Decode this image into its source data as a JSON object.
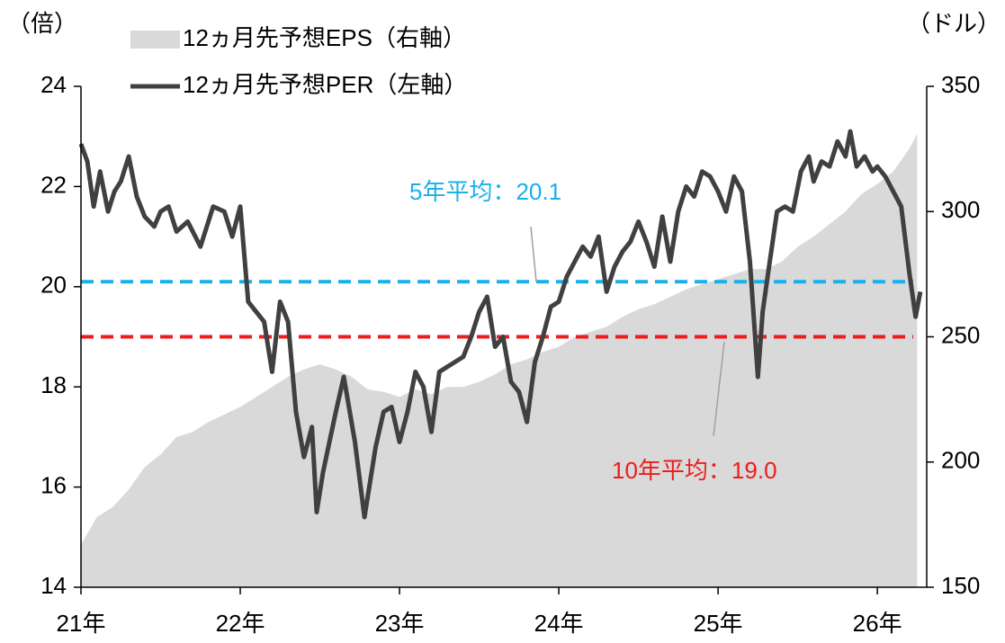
{
  "chart_data": {
    "type": "area-line",
    "y_unit": "（倍）",
    "y2_unit": "（ドル）",
    "xlim": [
      2021,
      2026.31
    ],
    "xticks": [
      {
        "value": 2021,
        "label": "21年"
      },
      {
        "value": 2022,
        "label": "22年"
      },
      {
        "value": 2023,
        "label": "23年"
      },
      {
        "value": 2024,
        "label": "24年"
      },
      {
        "value": 2025,
        "label": "25年"
      },
      {
        "value": 2026,
        "label": "26年"
      }
    ],
    "ylim": [
      14,
      24
    ],
    "yticks": [
      14,
      16,
      18,
      20,
      22,
      24
    ],
    "y2lim": [
      150,
      350
    ],
    "y2ticks": [
      150,
      200,
      250,
      300,
      350
    ],
    "series": [
      {
        "name": "12ヵ月先予想EPS（右軸）",
        "kind": "area",
        "axis": "y2",
        "color": "#d9d9d9",
        "x": [
          2021,
          2021.1,
          2021.2,
          2021.3,
          2021.4,
          2021.5,
          2021.6,
          2021.7,
          2021.8,
          2021.9,
          2022,
          2022.1,
          2022.2,
          2022.3,
          2022.4,
          2022.5,
          2022.6,
          2022.7,
          2022.8,
          2022.9,
          2023,
          2023.1,
          2023.2,
          2023.3,
          2023.4,
          2023.5,
          2023.6,
          2023.7,
          2023.8,
          2023.9,
          2024,
          2024.1,
          2024.2,
          2024.3,
          2024.4,
          2024.5,
          2024.6,
          2024.7,
          2024.8,
          2024.9,
          2025,
          2025.1,
          2025.2,
          2025.3,
          2025.4,
          2025.5,
          2025.6,
          2025.7,
          2025.8,
          2025.9,
          2026,
          2026.1,
          2026.2,
          2026.25
        ],
        "values": [
          167,
          178,
          182,
          189,
          198,
          203,
          210,
          212,
          216,
          219,
          222,
          226,
          230,
          234,
          237,
          239,
          237,
          234,
          229,
          228,
          226,
          229,
          227,
          230,
          230,
          232,
          235,
          239,
          241,
          244,
          246,
          250,
          252,
          254,
          258,
          261,
          263,
          266,
          269,
          271,
          273,
          275,
          277,
          277,
          280,
          286,
          290,
          295,
          300,
          307,
          311,
          316,
          325,
          331
        ]
      },
      {
        "name": "12ヵ月先予想PER（左軸）",
        "kind": "line",
        "axis": "y",
        "color": "#404040",
        "x": [
          2021,
          2021.04,
          2021.08,
          2021.12,
          2021.17,
          2021.21,
          2021.25,
          2021.3,
          2021.35,
          2021.4,
          2021.46,
          2021.5,
          2021.55,
          2021.6,
          2021.67,
          2021.75,
          2021.83,
          2021.9,
          2021.95,
          2022,
          2022.05,
          2022.1,
          2022.15,
          2022.2,
          2022.25,
          2022.3,
          2022.35,
          2022.4,
          2022.45,
          2022.48,
          2022.52,
          2022.6,
          2022.65,
          2022.72,
          2022.78,
          2022.85,
          2022.9,
          2022.95,
          2023,
          2023.05,
          2023.1,
          2023.15,
          2023.2,
          2023.25,
          2023.3,
          2023.4,
          2023.45,
          2023.5,
          2023.55,
          2023.6,
          2023.65,
          2023.7,
          2023.75,
          2023.8,
          2023.85,
          2023.9,
          2023.95,
          2024,
          2024.05,
          2024.1,
          2024.15,
          2024.2,
          2024.25,
          2024.3,
          2024.35,
          2024.4,
          2024.45,
          2024.5,
          2024.55,
          2024.6,
          2024.65,
          2024.7,
          2024.75,
          2024.8,
          2024.85,
          2024.9,
          2024.95,
          2025,
          2025.05,
          2025.1,
          2025.15,
          2025.2,
          2025.25,
          2025.28,
          2025.32,
          2025.37,
          2025.42,
          2025.47,
          2025.52,
          2025.57,
          2025.6,
          2025.65,
          2025.7,
          2025.75,
          2025.8,
          2025.83,
          2025.87,
          2025.92,
          2025.97,
          2026,
          2026.05,
          2026.1,
          2026.15,
          2026.2,
          2026.24,
          2026.27
        ],
        "values": [
          22.85,
          22.5,
          21.6,
          22.3,
          21.5,
          21.9,
          22.1,
          22.6,
          21.8,
          21.4,
          21.2,
          21.5,
          21.6,
          21.1,
          21.3,
          20.8,
          21.6,
          21.5,
          21.0,
          21.6,
          19.7,
          19.5,
          19.3,
          18.3,
          19.7,
          19.3,
          17.5,
          16.6,
          17.2,
          15.5,
          16.3,
          17.5,
          18.2,
          16.9,
          15.4,
          16.8,
          17.5,
          17.6,
          16.9,
          17.5,
          18.3,
          18.0,
          17.1,
          18.3,
          18.4,
          18.6,
          19.0,
          19.5,
          19.8,
          18.8,
          19.0,
          18.1,
          17.9,
          17.3,
          18.5,
          19.0,
          19.6,
          19.7,
          20.2,
          20.5,
          20.8,
          20.6,
          21.0,
          19.9,
          20.4,
          20.7,
          20.9,
          21.3,
          20.9,
          20.4,
          21.4,
          20.5,
          21.5,
          22.0,
          21.8,
          22.3,
          22.2,
          21.9,
          21.5,
          22.2,
          21.9,
          20.5,
          18.2,
          19.5,
          20.4,
          21.5,
          21.6,
          21.5,
          22.3,
          22.6,
          22.1,
          22.5,
          22.4,
          22.9,
          22.6,
          23.1,
          22.4,
          22.6,
          22.3,
          22.4,
          22.2,
          21.9,
          21.6,
          20.3,
          19.4,
          19.9
        ]
      }
    ],
    "reference_lines": [
      {
        "label": "5年平均：20.1",
        "value": 20.1,
        "color": "#1ab0e8"
      },
      {
        "label": "10年平均：19.0",
        "value": 19.0,
        "color": "#ee1c1c"
      }
    ]
  }
}
